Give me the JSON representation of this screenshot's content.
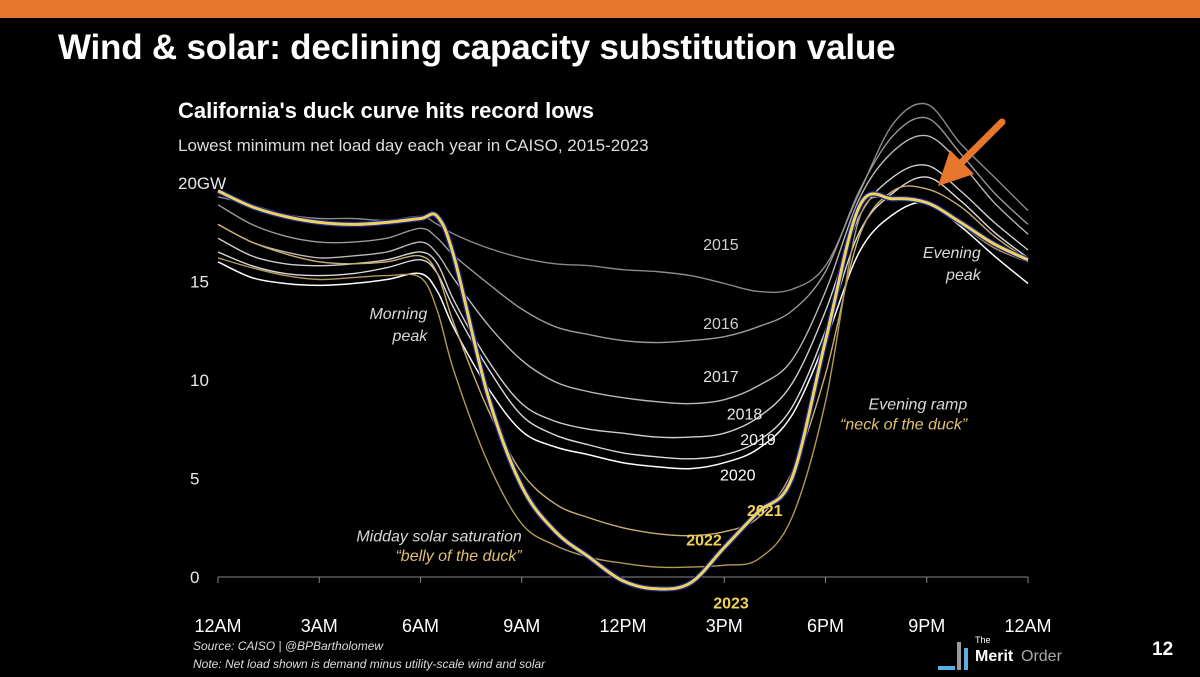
{
  "slide": {
    "title": "Wind & solar: declining capacity substitution value",
    "page_number": "12",
    "accent_color": "#e8772e"
  },
  "logo": {
    "the": "The",
    "merit": "Merit",
    "order": "Order"
  },
  "chart_data": {
    "type": "line",
    "title": "California's duck curve hits record lows",
    "subtitle": "Lowest minimum net load day each year in CAISO, 2015-2023",
    "y_unit_label": "20GW",
    "y_ticks": [
      {
        "value": 20,
        "label": "20GW"
      },
      {
        "value": 15,
        "label": "15"
      },
      {
        "value": 10,
        "label": "10"
      },
      {
        "value": 5,
        "label": "5"
      },
      {
        "value": 0,
        "label": "0"
      }
    ],
    "x_ticks": [
      {
        "value": 0,
        "label": "12AM"
      },
      {
        "value": 3,
        "label": "3AM"
      },
      {
        "value": 6,
        "label": "6AM"
      },
      {
        "value": 9,
        "label": "9AM"
      },
      {
        "value": 12,
        "label": "12PM"
      },
      {
        "value": 15,
        "label": "3PM"
      },
      {
        "value": 18,
        "label": "6PM"
      },
      {
        "value": 21,
        "label": "9PM"
      },
      {
        "value": 24,
        "label": "12AM"
      }
    ],
    "xlim": [
      0,
      24
    ],
    "ylim": [
      0,
      20
    ],
    "grid": false,
    "x_hours": [
      0,
      1,
      2,
      3,
      4,
      5,
      6,
      6.5,
      7,
      8,
      9,
      10,
      11,
      12,
      13,
      14,
      15,
      16,
      17,
      18,
      19,
      20,
      21,
      22,
      23,
      24
    ],
    "series": [
      {
        "name": "2015",
        "color": "#8a8a8a",
        "width": 1.4,
        "values": [
          19.3,
          18.9,
          18.4,
          18.2,
          18.2,
          18.1,
          18.3,
          17.9,
          17.4,
          16.7,
          16.2,
          15.9,
          15.8,
          15.6,
          15.5,
          15.3,
          14.9,
          14.5,
          14.6,
          15.8,
          19.5,
          23.0,
          24.0,
          22.0,
          20.3,
          18.6
        ]
      },
      {
        "name": "2016",
        "color": "#9a9a9a",
        "width": 1.4,
        "values": [
          18.9,
          17.9,
          17.3,
          17.0,
          17.0,
          17.2,
          17.7,
          17.2,
          16.3,
          14.9,
          13.6,
          12.7,
          12.3,
          12.0,
          11.9,
          12.0,
          12.2,
          12.7,
          13.5,
          15.5,
          19.6,
          22.4,
          23.3,
          21.5,
          19.5,
          17.9
        ]
      },
      {
        "name": "2017",
        "color": "#b8b8b8",
        "width": 1.4,
        "values": [
          17.9,
          17.0,
          16.5,
          16.2,
          16.3,
          16.5,
          17.0,
          16.4,
          15.1,
          12.8,
          11.0,
          9.9,
          9.4,
          9.1,
          8.9,
          8.8,
          9.0,
          9.7,
          11.0,
          14.5,
          19.2,
          21.6,
          22.4,
          21.0,
          19.0,
          17.4
        ]
      },
      {
        "name": "2018",
        "color": "#cfcfcf",
        "width": 1.4,
        "values": [
          17.2,
          16.3,
          15.9,
          15.8,
          15.9,
          16.1,
          16.5,
          15.9,
          14.0,
          11.0,
          8.8,
          7.9,
          7.5,
          7.3,
          7.1,
          7.1,
          7.3,
          8.1,
          9.8,
          13.5,
          18.3,
          20.3,
          20.9,
          19.6,
          18.0,
          16.6
        ]
      },
      {
        "name": "2019",
        "color": "#dadada",
        "width": 1.4,
        "values": [
          16.5,
          15.8,
          15.4,
          15.3,
          15.4,
          15.7,
          16.1,
          15.4,
          13.6,
          10.6,
          8.2,
          7.2,
          6.7,
          6.3,
          6.1,
          6.0,
          6.2,
          6.9,
          8.6,
          12.5,
          17.5,
          19.5,
          20.3,
          19.1,
          17.5,
          16.2
        ]
      },
      {
        "name": "2020",
        "color": "#ffffff",
        "width": 1.5,
        "values": [
          16.0,
          15.2,
          14.9,
          14.8,
          14.9,
          15.1,
          15.4,
          14.5,
          12.6,
          9.6,
          7.4,
          6.6,
          6.2,
          5.8,
          5.6,
          5.5,
          5.8,
          6.5,
          8.2,
          12.0,
          16.5,
          18.4,
          19.0,
          17.8,
          16.3,
          14.9
        ]
      },
      {
        "name": "2021",
        "color": "#c8b070",
        "width": 1.4,
        "values": [
          17.9,
          17.0,
          16.4,
          16.0,
          15.9,
          16.0,
          16.3,
          15.4,
          12.8,
          8.5,
          5.3,
          3.7,
          3.0,
          2.5,
          2.2,
          2.1,
          2.3,
          3.0,
          5.3,
          10.3,
          17.3,
          19.6,
          19.7,
          18.8,
          17.3,
          16.1
        ]
      },
      {
        "name": "2022",
        "color": "#b09a58",
        "width": 1.4,
        "values": [
          16.2,
          15.7,
          15.3,
          15.1,
          15.2,
          15.3,
          15.2,
          13.5,
          10.4,
          5.8,
          2.7,
          1.6,
          1.0,
          0.7,
          0.5,
          0.5,
          0.6,
          0.9,
          3.0,
          8.9,
          18.2,
          19.2,
          19.0,
          17.9,
          16.7,
          16.0
        ]
      },
      {
        "name": "2023",
        "color": "#f0d15c",
        "width": 3.0,
        "values": [
          19.6,
          18.8,
          18.3,
          18.0,
          17.9,
          18.0,
          18.2,
          18.3,
          16.2,
          9.2,
          4.6,
          2.3,
          1.0,
          -0.2,
          -0.6,
          -0.3,
          1.5,
          3.3,
          5.0,
          12.0,
          18.8,
          19.2,
          19.0,
          18.0,
          16.9,
          16.1
        ]
      }
    ],
    "series_labels": [
      {
        "text": "2015",
        "x": 14.9,
        "y": 16.6,
        "color": "#d0d0d0",
        "bold": false
      },
      {
        "text": "2016",
        "x": 14.9,
        "y": 12.6,
        "color": "#d0d0d0",
        "bold": false
      },
      {
        "text": "2017",
        "x": 14.9,
        "y": 9.9,
        "color": "#e0e0e0",
        "bold": false
      },
      {
        "text": "2018",
        "x": 15.6,
        "y": 8.0,
        "color": "#e8e8e8",
        "bold": false
      },
      {
        "text": "2019",
        "x": 16.0,
        "y": 6.7,
        "color": "#f0f0f0",
        "bold": false
      },
      {
        "text": "2020",
        "x": 15.4,
        "y": 4.9,
        "color": "#ffffff",
        "bold": false
      },
      {
        "text": "2021",
        "x": 16.2,
        "y": 3.1,
        "color": "#f0d15c",
        "bold": true
      },
      {
        "text": "2022",
        "x": 14.4,
        "y": 1.6,
        "color": "#f0d15c",
        "bold": true
      },
      {
        "text": "2023",
        "x": 15.2,
        "y": -1.6,
        "color": "#f0d15c",
        "bold": true
      }
    ],
    "annotations": [
      {
        "lines": [
          "Morning",
          "peak"
        ],
        "x": 6.2,
        "y": 13.1,
        "color": "#d8d8d8",
        "anchor": "end"
      },
      {
        "lines": [
          "Evening",
          "peak"
        ],
        "x": 22.6,
        "y": 16.2,
        "color": "#d8d8d8",
        "anchor": "end"
      },
      {
        "lines": [
          "Evening ramp"
        ],
        "x": 22.2,
        "y": 8.5,
        "color": "#d8d8d8",
        "anchor": "end"
      },
      {
        "lines": [
          "“neck of the duck”"
        ],
        "x": 22.2,
        "y": 7.5,
        "color": "#e0c070",
        "anchor": "end"
      },
      {
        "lines": [
          "Midday solar saturation"
        ],
        "x": 9.0,
        "y": 1.8,
        "color": "#d8d8d8",
        "anchor": "end"
      },
      {
        "lines": [
          "“belly of the duck”"
        ],
        "x": 9.0,
        "y": 0.8,
        "color": "#e0c070",
        "anchor": "end"
      }
    ],
    "notes": {
      "source": "Source: CAISO | @BPBartholomew",
      "note": "Note: Net load shown is demand minus utility-scale wind and solar"
    }
  }
}
